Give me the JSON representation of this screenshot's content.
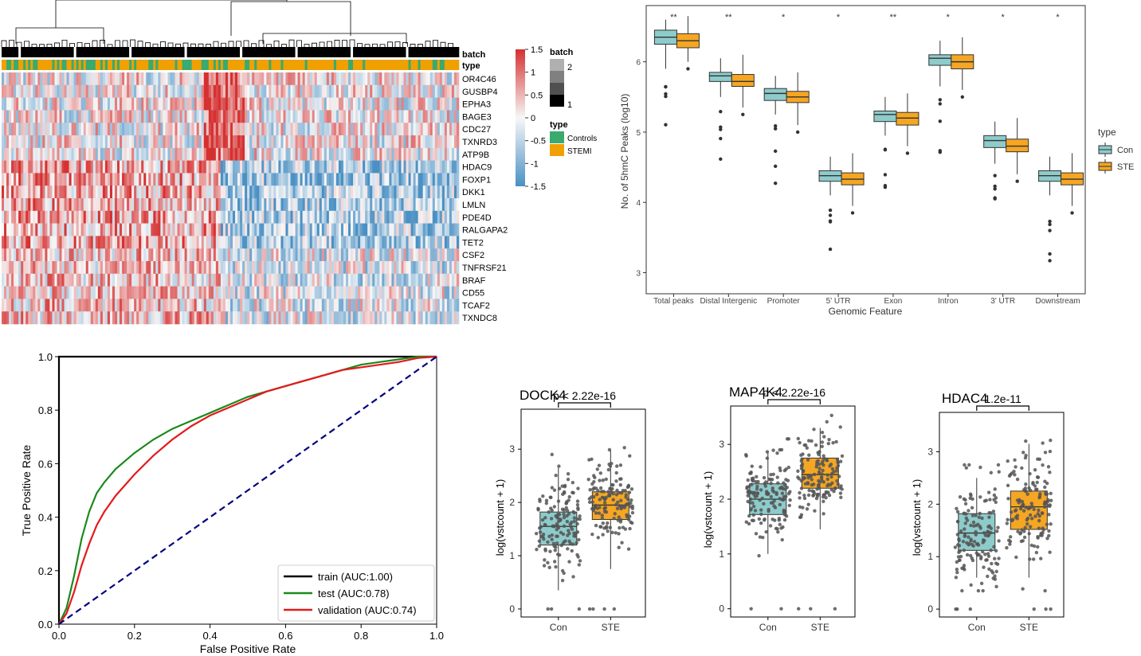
{
  "chart_data": [
    {
      "type": "heatmap",
      "title": "",
      "rows": [
        "OR4C46",
        "GUSBP4",
        "EPHA3",
        "BAGE3",
        "CDC27",
        "TXNRD3",
        "ATP9B",
        "HDAC9",
        "FOXP1",
        "DKK1",
        "LMLN",
        "PDE4D",
        "RALGAPA2",
        "TET2",
        "CSF2",
        "TNFRSF21",
        "BRAF",
        "CD55",
        "TCAF2",
        "TXNDC8"
      ],
      "annotation_rows": [
        "batch",
        "type"
      ],
      "colorbar": {
        "ticks": [
          "1.5",
          "1",
          "0.5",
          "0",
          "-0.5",
          "-1",
          "-1.5"
        ],
        "low": "#4a90c4",
        "mid": "#f7f7f7",
        "high": "#d53030"
      },
      "legend_batch": {
        "title": "batch",
        "labels": [
          "2",
          "1"
        ],
        "colors": [
          "#b0b0b0",
          "#808080",
          "#505050",
          "#000000"
        ]
      },
      "legend_type": {
        "title": "type",
        "labels": [
          "Controls",
          "STEMI"
        ],
        "colors": [
          "#3aaa6e",
          "#f0a000"
        ]
      }
    },
    {
      "type": "box",
      "xlabel": "Genomic Feature",
      "ylabel": "No. of 5hmC Peaks (log10)",
      "ylim": [
        2.7,
        6.8
      ],
      "yticks": [
        "3",
        "4",
        "5",
        "6"
      ],
      "categories": [
        "Total peaks",
        "Distal Intergenic",
        "Promoter",
        "5' UTR",
        "Exon",
        "Intron",
        "3' UTR",
        "Downstream"
      ],
      "significance": [
        "**",
        "**",
        "*",
        "*",
        "**",
        "*",
        "*",
        "*"
      ],
      "legend": {
        "title": "type",
        "labels": [
          "Con",
          "STE"
        ],
        "colors": [
          "#8ecbcb",
          "#f5a623"
        ]
      },
      "series": [
        {
          "name": "Con",
          "boxes": [
            [
              5.9,
              6.25,
              6.35,
              6.45,
              6.6
            ],
            [
              5.5,
              5.72,
              5.8,
              5.85,
              6.05
            ],
            [
              5.25,
              5.45,
              5.55,
              5.62,
              5.8
            ],
            [
              4.1,
              4.3,
              4.38,
              4.45,
              4.65
            ],
            [
              4.95,
              5.15,
              5.25,
              5.3,
              5.5
            ],
            [
              5.65,
              5.95,
              6.05,
              6.1,
              6.3
            ],
            [
              4.55,
              4.78,
              4.88,
              4.95,
              5.15
            ],
            [
              4.1,
              4.3,
              4.38,
              4.45,
              4.65
            ]
          ]
        },
        {
          "name": "STE",
          "boxes": [
            [
              6.0,
              6.2,
              6.3,
              6.4,
              6.65
            ],
            [
              5.35,
              5.65,
              5.72,
              5.82,
              6.1
            ],
            [
              5.1,
              5.42,
              5.5,
              5.58,
              5.85
            ],
            [
              3.95,
              4.25,
              4.33,
              4.42,
              4.7
            ],
            [
              4.8,
              5.1,
              5.2,
              5.28,
              5.55
            ],
            [
              5.6,
              5.9,
              6.0,
              6.1,
              6.35
            ],
            [
              4.4,
              4.72,
              4.8,
              4.9,
              5.2
            ],
            [
              3.95,
              4.25,
              4.33,
              4.42,
              4.7
            ]
          ]
        }
      ]
    },
    {
      "type": "line",
      "xlabel": "False Positive Rate",
      "ylabel": "True Positive Rate",
      "xlim": [
        0,
        1
      ],
      "ylim": [
        0,
        1
      ],
      "xticks": [
        "0.0",
        "0.2",
        "0.4",
        "0.6",
        "0.8",
        "1.0"
      ],
      "yticks": [
        "0.0",
        "0.2",
        "0.4",
        "0.6",
        "0.8",
        "1.0"
      ],
      "series": [
        {
          "name": "train (AUC:1.00)",
          "color": "#000000",
          "x": [
            0,
            0,
            1
          ],
          "y": [
            0,
            1,
            1
          ]
        },
        {
          "name": "test (AUC:0.78)",
          "color": "#1a8a1a",
          "x": [
            0,
            0.02,
            0.04,
            0.06,
            0.08,
            0.1,
            0.12,
            0.15,
            0.2,
            0.25,
            0.3,
            0.35,
            0.4,
            0.45,
            0.5,
            0.55,
            0.6,
            0.65,
            0.7,
            0.75,
            0.8,
            0.85,
            0.9,
            0.95,
            1.0
          ],
          "y": [
            0,
            0.06,
            0.18,
            0.32,
            0.42,
            0.49,
            0.53,
            0.58,
            0.64,
            0.69,
            0.73,
            0.76,
            0.79,
            0.82,
            0.85,
            0.87,
            0.89,
            0.91,
            0.93,
            0.95,
            0.97,
            0.98,
            0.99,
            1.0,
            1.0
          ]
        },
        {
          "name": "validation (AUC:0.74)",
          "color": "#e31a1c",
          "x": [
            0,
            0.02,
            0.04,
            0.06,
            0.08,
            0.1,
            0.12,
            0.15,
            0.2,
            0.25,
            0.3,
            0.35,
            0.4,
            0.45,
            0.5,
            0.55,
            0.6,
            0.65,
            0.7,
            0.75,
            0.8,
            0.85,
            0.9,
            0.95,
            1.0
          ],
          "y": [
            0,
            0.04,
            0.12,
            0.22,
            0.3,
            0.37,
            0.42,
            0.48,
            0.56,
            0.63,
            0.69,
            0.74,
            0.78,
            0.81,
            0.84,
            0.87,
            0.89,
            0.91,
            0.93,
            0.95,
            0.96,
            0.97,
            0.98,
            0.995,
            1.0
          ]
        },
        {
          "name": "",
          "color": "#000080",
          "dashed": true,
          "x": [
            0,
            1
          ],
          "y": [
            0,
            1
          ]
        }
      ]
    },
    {
      "type": "box",
      "title": "DOCK4",
      "pvalue": "p < 2.22e-16",
      "xlabel": "",
      "ylabel": "log(vstcount + 1)",
      "ylim": [
        -0.15,
        3.75
      ],
      "yticks": [
        "0",
        "1",
        "2",
        "3"
      ],
      "categories": [
        "Con",
        "STE"
      ],
      "colors": [
        "#8ecbcb",
        "#f5a623"
      ],
      "boxes": [
        [
          0.35,
          1.2,
          1.55,
          1.82,
          2.65
        ],
        [
          0.75,
          1.68,
          1.95,
          2.2,
          2.98
        ]
      ]
    },
    {
      "type": "box",
      "title": "MAP4K4",
      "pvalue": "p < 2.22e-16",
      "xlabel": "",
      "ylabel": "log(vstcount + 1)",
      "ylim": [
        -0.15,
        3.7
      ],
      "yticks": [
        "0",
        "1",
        "2",
        "3"
      ],
      "categories": [
        "Con",
        "STE"
      ],
      "colors": [
        "#8ecbcb",
        "#f5a623"
      ],
      "boxes": [
        [
          1.0,
          1.72,
          2.0,
          2.28,
          2.85
        ],
        [
          1.45,
          2.2,
          2.45,
          2.75,
          3.3
        ]
      ]
    },
    {
      "type": "box",
      "title": "HDAC4",
      "pvalue": "1.2e-11",
      "xlabel": "",
      "ylabel": "log(vstcount + 1)",
      "ylim": [
        -0.15,
        3.75
      ],
      "yticks": [
        "0",
        "1",
        "2",
        "3"
      ],
      "categories": [
        "Con",
        "STE"
      ],
      "colors": [
        "#8ecbcb",
        "#f5a623"
      ],
      "boxes": [
        [
          0.6,
          1.12,
          1.45,
          1.82,
          2.5
        ],
        [
          0.6,
          1.52,
          1.95,
          2.25,
          3.15
        ]
      ]
    }
  ]
}
